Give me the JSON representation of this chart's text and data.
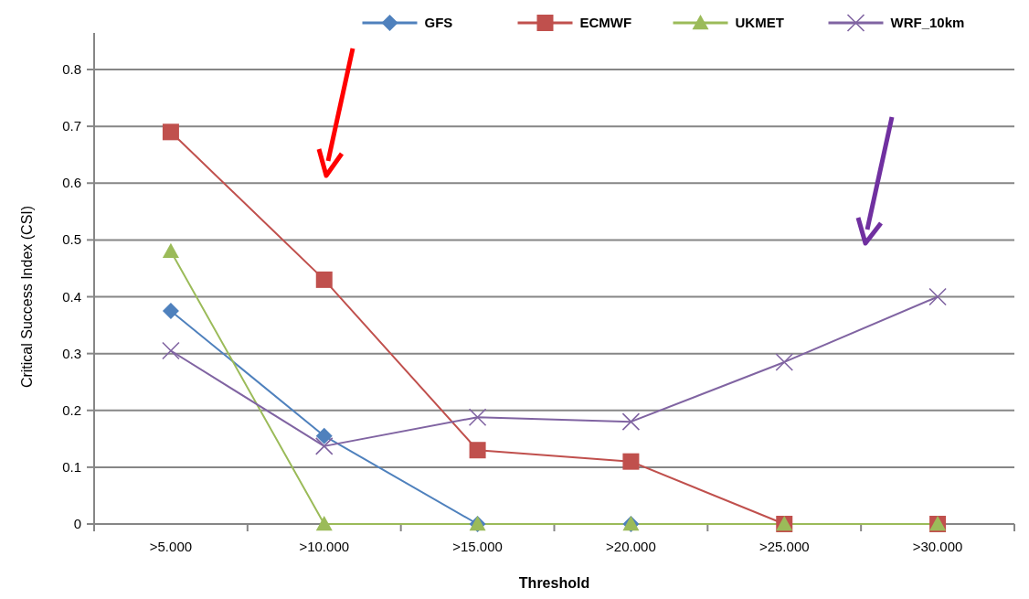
{
  "chart_data": {
    "type": "line",
    "xlabel": "Threshold",
    "ylabel": "Critical Success Index (CSI)",
    "categories": [
      ">5.000",
      ">10.000",
      ">15.000",
      ">20.000",
      ">25.000",
      ">30.000"
    ],
    "series": [
      {
        "name": "GFS",
        "color": "#4f81bd",
        "marker": "diamond",
        "values": [
          0.375,
          0.155,
          0,
          0,
          null,
          null
        ]
      },
      {
        "name": "ECMWF",
        "color": "#c0504d",
        "marker": "square",
        "values": [
          0.69,
          0.43,
          0.13,
          0.11,
          0,
          0
        ]
      },
      {
        "name": "UKMET",
        "color": "#9bbb59",
        "marker": "triangle",
        "values": [
          0.48,
          0,
          0,
          0,
          0,
          0
        ]
      },
      {
        "name": "WRF_10km",
        "color": "#8064a2",
        "marker": "cross",
        "values": [
          0.305,
          0.137,
          0.188,
          0.18,
          0.285,
          0.4
        ]
      }
    ],
    "ylim": [
      0,
      0.8
    ],
    "yticks": [
      0,
      0.1,
      0.2,
      0.3,
      0.4,
      0.5,
      0.6,
      0.7,
      0.8
    ],
    "grid": "y",
    "legend": "top"
  }
}
